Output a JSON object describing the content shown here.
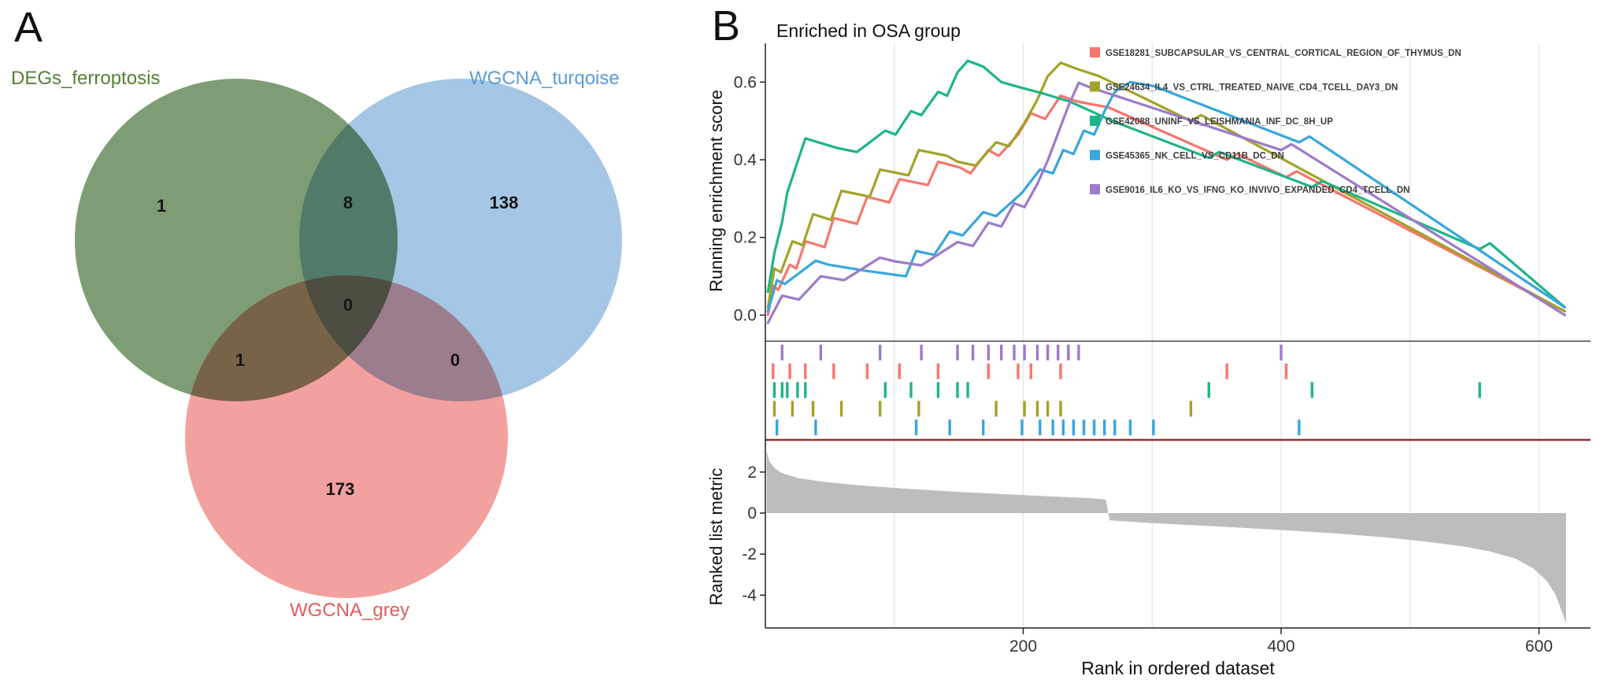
{
  "panels": {
    "a_label": "A",
    "b_label": "B"
  },
  "chart_data": [
    {
      "type": "venn",
      "panel": "A",
      "sets": [
        "DEGs_ferroptosis",
        "WGCNA_turqoise",
        "WGCNA_grey"
      ],
      "set_fill_colors": [
        "#7F9D74",
        "#A5C6E5",
        "#F2A19E"
      ],
      "set_label_colors": [
        "#538135",
        "#5B9BD5",
        "#E05C5C"
      ],
      "regions": {
        "a_only": 1,
        "a_and_b": 8,
        "b_only": 138,
        "center": 0,
        "a_and_c": 1,
        "b_and_c": 0,
        "c_only": 173
      }
    },
    {
      "type": "line",
      "panel": "B",
      "title": "Enriched in OSA group",
      "ylabel": "Running enrichment score",
      "ylim": [
        -0.06,
        0.7
      ],
      "yticks": [
        0.0,
        0.2,
        0.4,
        0.6
      ],
      "xlim": [
        0,
        640
      ],
      "grid_x": [
        100,
        200,
        300,
        400,
        500,
        600
      ],
      "series": [
        {
          "name": "GSE18281_SUBCAPSULAR_VS_CENTRAL_CORTICAL_REGION_OF_THYMUS_DN",
          "color": "#F8766D",
          "points": [
            [
              2,
              0.0
            ],
            [
              6,
              0.075
            ],
            [
              10,
              0.065
            ],
            [
              19,
              0.13
            ],
            [
              24,
              0.12
            ],
            [
              31,
              0.19
            ],
            [
              46,
              0.175
            ],
            [
              53,
              0.25
            ],
            [
              71,
              0.235
            ],
            [
              79,
              0.305
            ],
            [
              96,
              0.29
            ],
            [
              104,
              0.35
            ],
            [
              126,
              0.335
            ],
            [
              134,
              0.395
            ],
            [
              151,
              0.38
            ],
            [
              159,
              0.365
            ],
            [
              173,
              0.425
            ],
            [
              181,
              0.41
            ],
            [
              196,
              0.465
            ],
            [
              206,
              0.52
            ],
            [
              217,
              0.505
            ],
            [
              229,
              0.565
            ],
            [
              242,
              0.55
            ],
            [
              266,
              0.535
            ],
            [
              358,
              0.4
            ],
            [
              366,
              0.415
            ],
            [
              404,
              0.355
            ],
            [
              412,
              0.37
            ],
            [
              620,
              0.01
            ]
          ]
        },
        {
          "name": "GSE24634_IL4_VS_CTRL_TREATED_NAIVE_CD4_TCELL_DAY3_DN",
          "color": "#A3A228",
          "points": [
            [
              2,
              0.02
            ],
            [
              7,
              0.12
            ],
            [
              12,
              0.11
            ],
            [
              21,
              0.19
            ],
            [
              29,
              0.18
            ],
            [
              37,
              0.26
            ],
            [
              51,
              0.245
            ],
            [
              59,
              0.32
            ],
            [
              81,
              0.305
            ],
            [
              89,
              0.375
            ],
            [
              111,
              0.36
            ],
            [
              119,
              0.425
            ],
            [
              141,
              0.41
            ],
            [
              149,
              0.395
            ],
            [
              163,
              0.385
            ],
            [
              179,
              0.445
            ],
            [
              189,
              0.435
            ],
            [
              201,
              0.495
            ],
            [
              211,
              0.555
            ],
            [
              219,
              0.615
            ],
            [
              229,
              0.65
            ],
            [
              241,
              0.635
            ],
            [
              259,
              0.615
            ],
            [
              330,
              0.5
            ],
            [
              338,
              0.515
            ],
            [
              620,
              0.01
            ]
          ]
        },
        {
          "name": "GSE42088_UNINF_VS_LEISHMANIA_INF_DC_8H_UP",
          "color": "#1FB487",
          "points": [
            [
              2,
              0.06
            ],
            [
              7,
              0.16
            ],
            [
              13,
              0.24
            ],
            [
              17,
              0.315
            ],
            [
              25,
              0.395
            ],
            [
              31,
              0.455
            ],
            [
              46,
              0.44
            ],
            [
              56,
              0.43
            ],
            [
              71,
              0.42
            ],
            [
              93,
              0.475
            ],
            [
              101,
              0.465
            ],
            [
              113,
              0.525
            ],
            [
              121,
              0.515
            ],
            [
              134,
              0.575
            ],
            [
              141,
              0.565
            ],
            [
              149,
              0.625
            ],
            [
              157,
              0.655
            ],
            [
              169,
              0.64
            ],
            [
              183,
              0.6
            ],
            [
              199,
              0.585
            ],
            [
              216,
              0.57
            ],
            [
              236,
              0.55
            ],
            [
              256,
              0.52
            ],
            [
              269,
              0.5
            ],
            [
              344,
              0.405
            ],
            [
              352,
              0.42
            ],
            [
              424,
              0.33
            ],
            [
              432,
              0.345
            ],
            [
              554,
              0.17
            ],
            [
              562,
              0.185
            ],
            [
              620,
              0.02
            ]
          ]
        },
        {
          "name": "GSE45365_NK_CELL_VS_CD11B_DC_DN",
          "color": "#38A6DC",
          "points": [
            [
              2,
              0.01
            ],
            [
              9,
              0.09
            ],
            [
              15,
              0.08
            ],
            [
              39,
              0.14
            ],
            [
              49,
              0.13
            ],
            [
              76,
              0.115
            ],
            [
              109,
              0.1
            ],
            [
              117,
              0.165
            ],
            [
              131,
              0.155
            ],
            [
              143,
              0.215
            ],
            [
              153,
              0.205
            ],
            [
              169,
              0.265
            ],
            [
              179,
              0.255
            ],
            [
              199,
              0.315
            ],
            [
              213,
              0.375
            ],
            [
              223,
              0.365
            ],
            [
              231,
              0.425
            ],
            [
              239,
              0.415
            ],
            [
              247,
              0.475
            ],
            [
              255,
              0.465
            ],
            [
              263,
              0.525
            ],
            [
              271,
              0.575
            ],
            [
              283,
              0.6
            ],
            [
              301,
              0.59
            ],
            [
              414,
              0.445
            ],
            [
              422,
              0.46
            ],
            [
              620,
              0.02
            ]
          ]
        },
        {
          "name": "GSE9016_IL6_KO_VS_IFNG_KO_INVIVO_EXPANDED_CD4_TCELL_DN",
          "color": "#9D7BC8",
          "points": [
            [
              2,
              -0.02
            ],
            [
              13,
              0.05
            ],
            [
              26,
              0.04
            ],
            [
              43,
              0.1
            ],
            [
              61,
              0.09
            ],
            [
              89,
              0.148
            ],
            [
              101,
              0.138
            ],
            [
              121,
              0.128
            ],
            [
              149,
              0.188
            ],
            [
              161,
              0.178
            ],
            [
              173,
              0.238
            ],
            [
              183,
              0.228
            ],
            [
              193,
              0.288
            ],
            [
              201,
              0.278
            ],
            [
              211,
              0.338
            ],
            [
              219,
              0.398
            ],
            [
              227,
              0.468
            ],
            [
              235,
              0.538
            ],
            [
              243,
              0.598
            ],
            [
              253,
              0.585
            ],
            [
              400,
              0.425
            ],
            [
              408,
              0.44
            ],
            [
              620,
              0.0
            ]
          ]
        }
      ]
    },
    {
      "type": "rug",
      "panel": "B",
      "rows": [
        {
          "series_index": 4,
          "color": "#9D7BC8",
          "positions": [
            13,
            43,
            89,
            121,
            149,
            161,
            173,
            183,
            193,
            201,
            211,
            219,
            227,
            235,
            243,
            400
          ]
        },
        {
          "series_index": 0,
          "color": "#F8766D",
          "positions": [
            6,
            19,
            31,
            53,
            79,
            104,
            134,
            173,
            196,
            206,
            229,
            358,
            404
          ]
        },
        {
          "series_index": 2,
          "color": "#1FB487",
          "positions": [
            7,
            13,
            17,
            25,
            31,
            93,
            113,
            134,
            149,
            157,
            344,
            424,
            554
          ]
        },
        {
          "series_index": 1,
          "color": "#A3A228",
          "positions": [
            7,
            21,
            37,
            59,
            89,
            119,
            179,
            201,
            211,
            219,
            229,
            330
          ]
        },
        {
          "series_index": 3,
          "color": "#38A6DC",
          "positions": [
            9,
            39,
            117,
            143,
            169,
            199,
            213,
            223,
            231,
            239,
            247,
            255,
            263,
            271,
            283,
            301,
            414
          ]
        }
      ],
      "baseline_color": "#8B3333"
    },
    {
      "type": "area",
      "panel": "B",
      "ylabel": "Ranked list metric",
      "xlabel": "Rank in ordered dataset",
      "ylim": [
        -5.6,
        3.3
      ],
      "yticks": [
        2,
        0,
        -2,
        -4
      ],
      "xticks": [
        200,
        400,
        600
      ],
      "fill_color": "#BDBDBD",
      "points": [
        [
          1,
          3.05
        ],
        [
          3,
          2.55
        ],
        [
          7,
          2.2
        ],
        [
          13,
          1.95
        ],
        [
          26,
          1.7
        ],
        [
          46,
          1.52
        ],
        [
          72,
          1.36
        ],
        [
          102,
          1.22
        ],
        [
          142,
          1.06
        ],
        [
          182,
          0.93
        ],
        [
          222,
          0.81
        ],
        [
          252,
          0.73
        ],
        [
          264,
          0.66
        ],
        [
          267,
          -0.35
        ],
        [
          292,
          -0.46
        ],
        [
          322,
          -0.56
        ],
        [
          362,
          -0.69
        ],
        [
          402,
          -0.83
        ],
        [
          442,
          -0.99
        ],
        [
          482,
          -1.19
        ],
        [
          512,
          -1.39
        ],
        [
          542,
          -1.63
        ],
        [
          562,
          -1.87
        ],
        [
          582,
          -2.22
        ],
        [
          596,
          -2.72
        ],
        [
          606,
          -3.3
        ],
        [
          613,
          -4.0
        ],
        [
          618,
          -4.85
        ],
        [
          621,
          -5.35
        ]
      ]
    }
  ]
}
